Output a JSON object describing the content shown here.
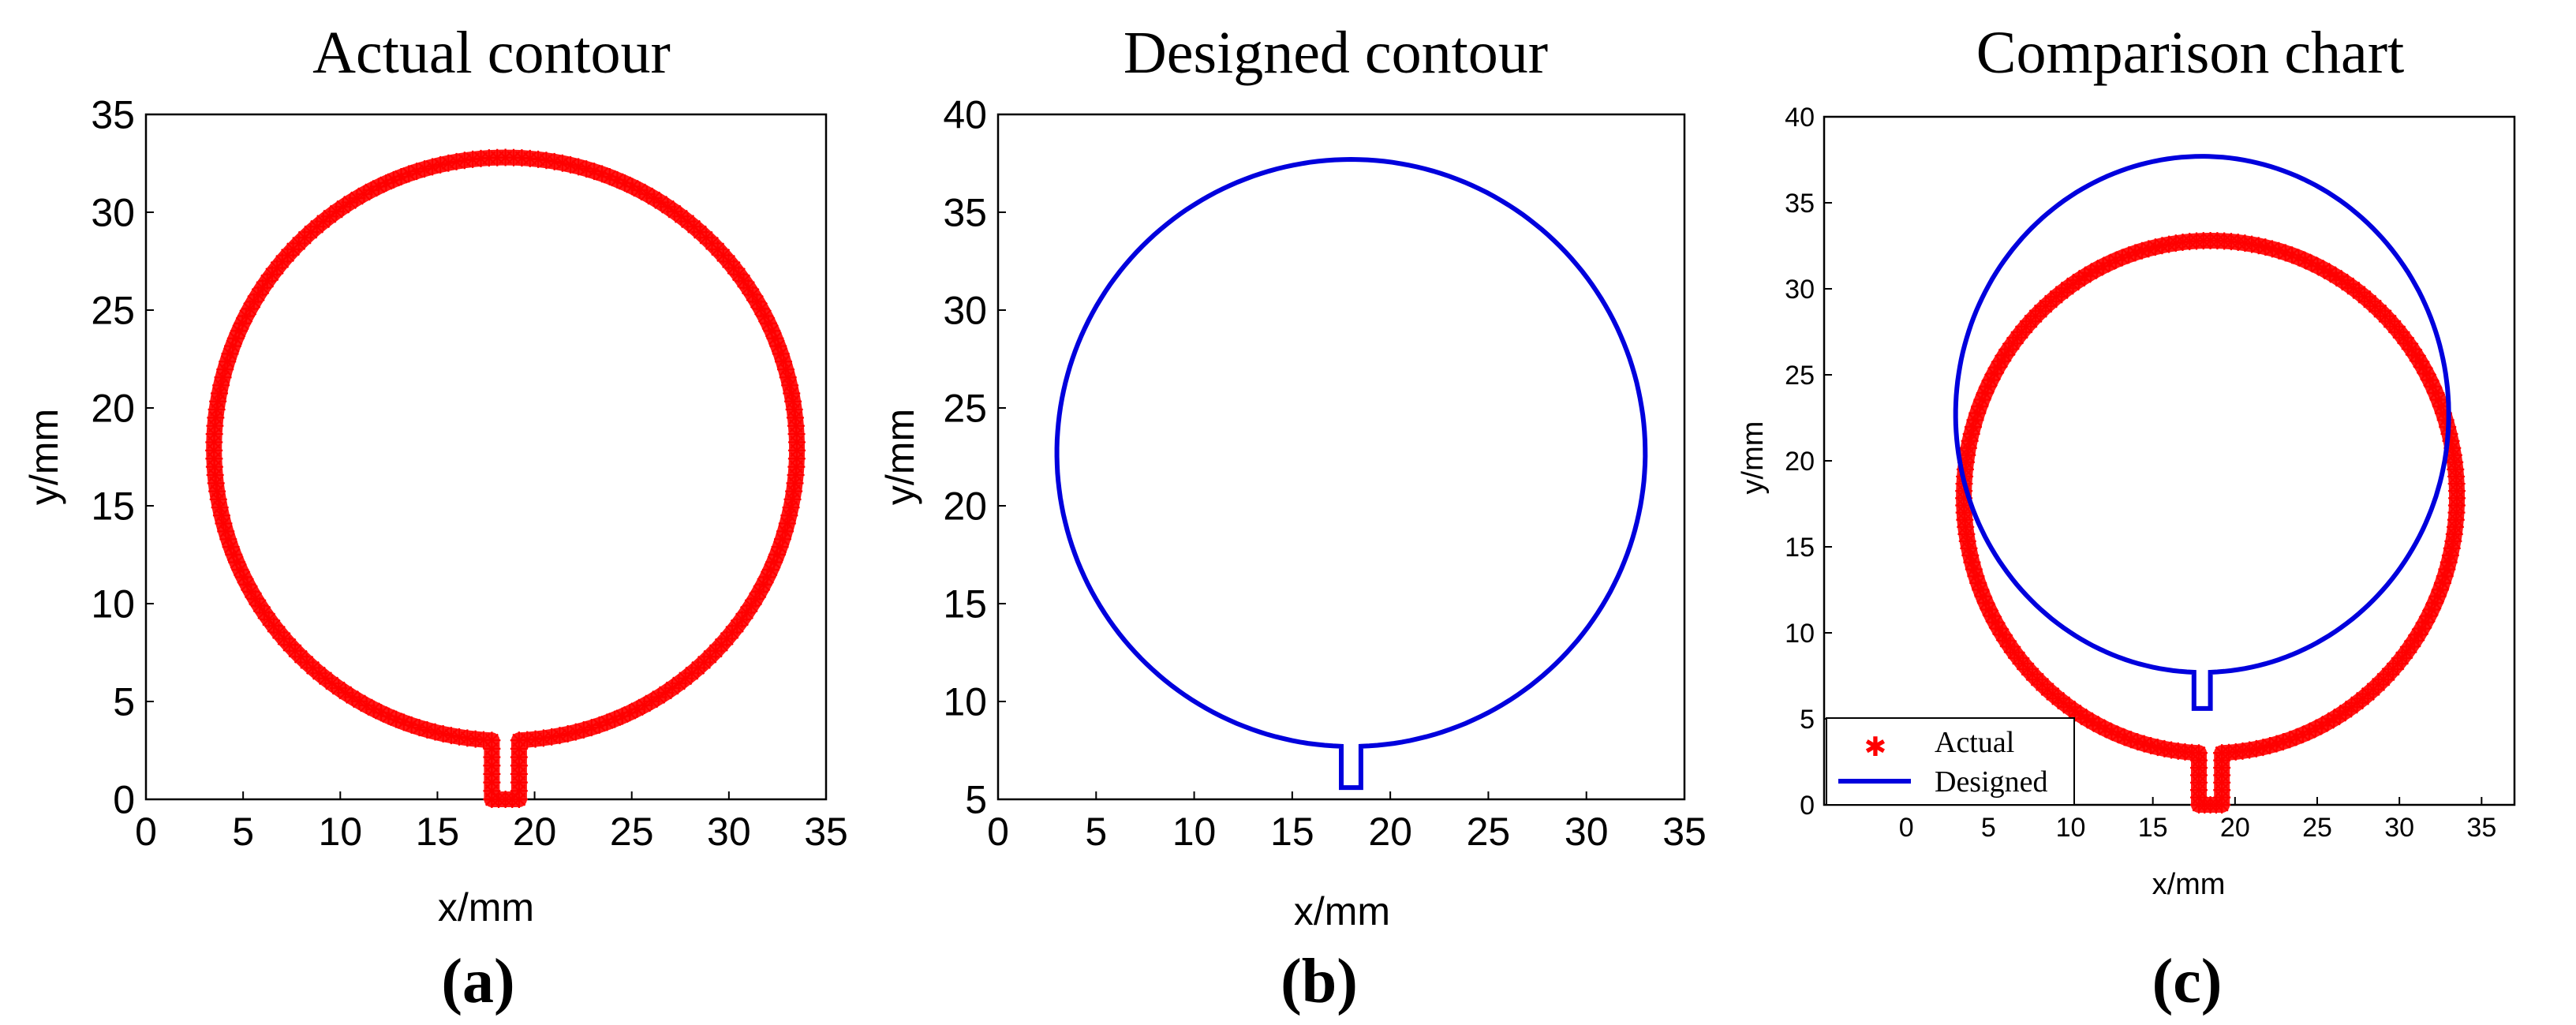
{
  "colors": {
    "actual": "#ff0000",
    "designed": "#0000dd",
    "axes": "#000000"
  },
  "chart_data": [
    {
      "id": "a",
      "type": "scatter",
      "title": "Actual contour",
      "panel_label": "(a)",
      "xlabel": "x/mm",
      "ylabel": "y/mm",
      "xlim": [
        0,
        35
      ],
      "ylim": [
        0,
        35
      ],
      "xticks": [
        0,
        5,
        10,
        15,
        20,
        25,
        30,
        35
      ],
      "yticks": [
        0,
        5,
        10,
        15,
        20,
        25,
        30,
        35
      ],
      "grid": false,
      "series": [
        {
          "kind": "actual",
          "marker": "*",
          "contour": {
            "cx": 18.5,
            "cy": 17.9,
            "rx": 15,
            "ry": 14.9,
            "notch_half_width": 0.7,
            "notch_bottom": 0
          }
        }
      ]
    },
    {
      "id": "b",
      "type": "line",
      "title": "Designed contour",
      "panel_label": "(b)",
      "xlabel": "x/mm",
      "ylabel": "y/mm",
      "xlim": [
        0,
        35
      ],
      "ylim": [
        5,
        40
      ],
      "xticks": [
        0,
        5,
        10,
        15,
        20,
        25,
        30,
        35
      ],
      "yticks": [
        5,
        10,
        15,
        20,
        25,
        30,
        35,
        40
      ],
      "grid": false,
      "series": [
        {
          "kind": "designed",
          "contour": {
            "cx": 18,
            "cy": 22.7,
            "rx": 15,
            "ry": 15,
            "notch_half_width": 0.5,
            "notch_bottom": 5.6
          }
        }
      ]
    },
    {
      "id": "c",
      "type": "scatter",
      "title": "Comparison chart",
      "panel_label": "(c)",
      "xlabel": "x/mm",
      "ylabel": "y/mm",
      "xlim": [
        -5,
        37
      ],
      "ylim": [
        0,
        40
      ],
      "xticks": [
        0,
        5,
        10,
        15,
        20,
        25,
        30,
        35
      ],
      "yticks": [
        0,
        5,
        10,
        15,
        20,
        25,
        30,
        35,
        40
      ],
      "grid": false,
      "legend": "bottom-left",
      "series": [
        {
          "name": "Actual",
          "kind": "actual",
          "marker": "*",
          "contour": {
            "cx": 18.5,
            "cy": 17.9,
            "rx": 15,
            "ry": 14.9,
            "notch_half_width": 0.7,
            "notch_bottom": 0
          }
        },
        {
          "name": "Designed",
          "kind": "designed",
          "contour": {
            "cx": 18,
            "cy": 22.7,
            "rx": 15,
            "ry": 15,
            "notch_half_width": 0.5,
            "notch_bottom": 5.6
          }
        }
      ]
    }
  ]
}
